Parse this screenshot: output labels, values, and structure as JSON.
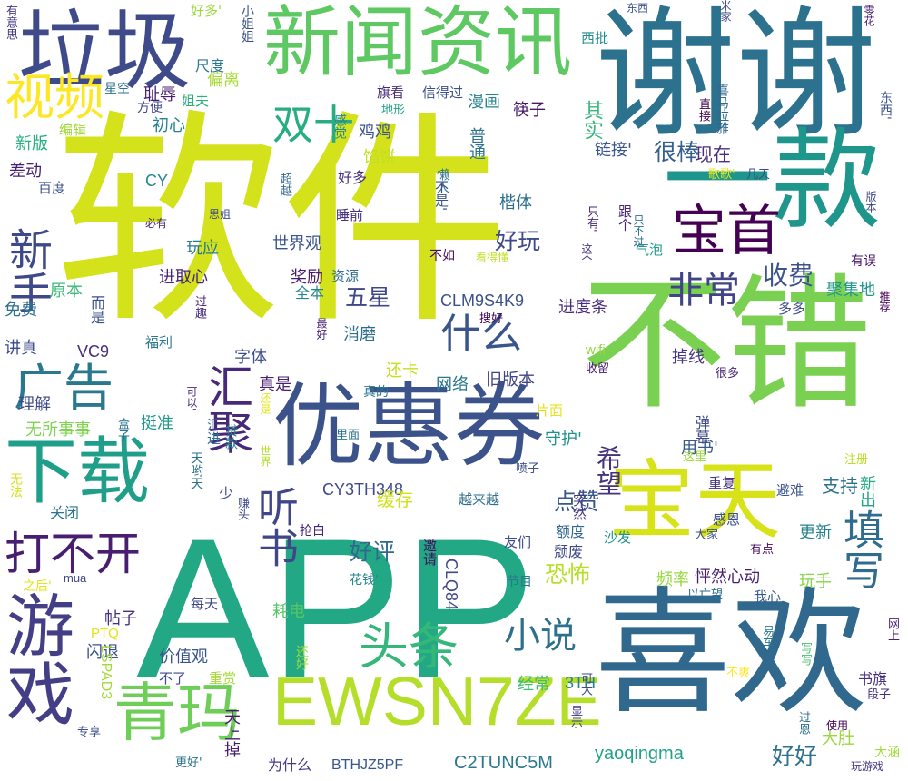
{
  "word_cloud": {
    "words": [
      {
        "text": "软件",
        "color": "#d3e21b"
      },
      {
        "text": "APP",
        "color": "#22a884"
      },
      {
        "text": "谢谢",
        "color": "#2c718e"
      },
      {
        "text": "不错",
        "color": "#7ad151"
      },
      {
        "text": "喜欢",
        "color": "#31688e"
      },
      {
        "text": "一款",
        "color": "#1f968b"
      },
      {
        "text": "新闻资讯",
        "color": "#5ec962"
      },
      {
        "text": "优惠券",
        "color": "#3b528b"
      },
      {
        "text": "垃圾",
        "color": "#3e4a89"
      },
      {
        "text": "EWSN7ZE",
        "color": "#b5de2b"
      },
      {
        "text": "宝天",
        "color": "#d8e219"
      },
      {
        "text": "下载",
        "color": "#1f9e89"
      },
      {
        "text": "游戏",
        "color": "#433e85"
      },
      {
        "text": "青玛",
        "color": "#6ece58"
      },
      {
        "text": "宝首",
        "color": "#440154"
      },
      {
        "text": "头条",
        "color": "#35b779"
      },
      {
        "text": "视频",
        "color": "#fde725"
      },
      {
        "text": "广告",
        "color": "#2a788e"
      },
      {
        "text": "双十",
        "color": "#27ad81"
      },
      {
        "text": "汇聚",
        "color": "#482878"
      },
      {
        "text": "打不开",
        "color": "#481f70"
      },
      {
        "text": "新手",
        "color": "#3e4989"
      },
      {
        "text": "听书",
        "color": "#404688"
      },
      {
        "text": "填写",
        "color": "#2f6c8e"
      },
      {
        "text": "非常",
        "color": "#414487"
      },
      {
        "text": "什么",
        "color": "#39568c"
      },
      {
        "text": "小说",
        "color": "#2d708e"
      },
      {
        "text": "收费",
        "color": "#3b528b"
      },
      {
        "text": "五星",
        "color": "#3f4788"
      },
      {
        "text": "好评",
        "color": "#31688e"
      },
      {
        "text": "恐怖",
        "color": "#b8de29"
      },
      {
        "text": "希望",
        "color": "#46337e"
      },
      {
        "text": "很棒",
        "color": "#355f8d"
      },
      {
        "text": "好玩",
        "color": "#3f4889"
      },
      {
        "text": "支持",
        "color": "#2c738e"
      },
      {
        "text": "点赞",
        "color": "#38588c"
      },
      {
        "text": "yaoqingma",
        "color": "#1fa287"
      },
      {
        "text": "好好",
        "color": "#2c718e"
      },
      {
        "text": "现在",
        "color": "#472f7d"
      },
      {
        "text": "进取心",
        "color": "#482576"
      },
      {
        "text": "世界观",
        "color": "#3a548c"
      },
      {
        "text": "CLM9S4K9",
        "color": "#3b518b"
      },
      {
        "text": "C2TUNC5M",
        "color": "#2a788e"
      },
      {
        "text": "BTHJZ5PF",
        "color": "#38588c"
      },
      {
        "text": "为什么",
        "color": "#453781"
      },
      {
        "text": "CY3TH348",
        "color": "#3e4a89"
      },
      {
        "text": "CLQ84",
        "color": "#3f4889"
      },
      {
        "text": "旧版本",
        "color": "#414487"
      },
      {
        "text": "进度条",
        "color": "#472d7b"
      },
      {
        "text": "掉线",
        "color": "#453882"
      },
      {
        "text": "鸡鸡",
        "color": "#3a538b"
      },
      {
        "text": "馅饼",
        "color": "#c2df23"
      },
      {
        "text": "漫画",
        "color": "#25848e"
      },
      {
        "text": "楷体",
        "color": "#2d708e"
      },
      {
        "text": "链接'",
        "color": "#39558c"
      },
      {
        "text": "筷子",
        "color": "#481769"
      },
      {
        "text": "普通",
        "color": "#2c728e"
      },
      {
        "text": "其实",
        "color": "#35b779"
      },
      {
        "text": "旗看",
        "color": "#472c7a"
      },
      {
        "text": "信得过",
        "color": "#3d4e8a"
      },
      {
        "text": "尺度",
        "color": "#2a778e"
      },
      {
        "text": "偏离",
        "color": "#a8db34"
      },
      {
        "text": "耻辱",
        "color": "#482071"
      },
      {
        "text": "初心",
        "color": "#26818e"
      },
      {
        "text": "姐夫",
        "color": "#2ab07f"
      },
      {
        "text": "星空",
        "color": "#2c728e"
      },
      {
        "text": "方便",
        "color": "#3f4788"
      },
      {
        "text": "编辑",
        "color": "#a0da39"
      },
      {
        "text": "新版",
        "color": "#29af7f"
      },
      {
        "text": "差动",
        "color": "#482071"
      },
      {
        "text": "百度",
        "color": "#3b528b"
      },
      {
        "text": "CY",
        "color": "#24878e"
      },
      {
        "text": "好多",
        "color": "#46307e"
      },
      {
        "text": "好多'",
        "color": "#9bd93c"
      },
      {
        "text": "玩应",
        "color": "#297a8e"
      },
      {
        "text": "睡前",
        "color": "#46327e"
      },
      {
        "text": "奖励",
        "color": "#481a6c"
      },
      {
        "text": "资源",
        "color": "#2f6b8e"
      },
      {
        "text": "全本",
        "color": "#25858e"
      },
      {
        "text": "原本",
        "color": "#3aba76"
      },
      {
        "text": "免费",
        "color": "#2d708e"
      },
      {
        "text": "讲真",
        "color": "#3e4a89"
      },
      {
        "text": "VC9",
        "color": "#472d7b"
      },
      {
        "text": "福利",
        "color": "#2a768e"
      },
      {
        "text": "消磨",
        "color": "#2e6f8e"
      },
      {
        "text": "字体",
        "color": "#3c4f8a"
      },
      {
        "text": "真是",
        "color": "#482071"
      },
      {
        "text": "还卡",
        "color": "#c5e021"
      },
      {
        "text": "网络",
        "color": "#2a788e"
      },
      {
        "text": "理解",
        "color": "#3e4989"
      },
      {
        "text": "无所事事",
        "color": "#7fd34e"
      },
      {
        "text": "挺准",
        "color": "#1f998a"
      },
      {
        "text": "片面",
        "color": "#e5e419"
      },
      {
        "text": "守护'",
        "color": "#20928c"
      },
      {
        "text": "用书'",
        "color": "#38598c"
      },
      {
        "text": "关闭",
        "color": "#2c738e"
      },
      {
        "text": "缓存",
        "color": "#d0e11c"
      },
      {
        "text": "越来越",
        "color": "#2e6e8e"
      },
      {
        "text": "突然",
        "color": "#453882"
      },
      {
        "text": "重复",
        "color": "#46327e"
      },
      {
        "text": "避难",
        "color": "#3a548c"
      },
      {
        "text": "更新",
        "color": "#26828e"
      },
      {
        "text": "感恩",
        "color": "#3d4e8a"
      },
      {
        "text": "友们",
        "color": "#3f4889"
      },
      {
        "text": "沙发",
        "color": "#21918c"
      },
      {
        "text": "频率",
        "color": "#95d840"
      },
      {
        "text": "怦然心动",
        "color": "#481f70"
      },
      {
        "text": "玩手",
        "color": "#86d549"
      },
      {
        "text": "帖子",
        "color": "#472e7c"
      },
      {
        "text": "耗电",
        "color": "#55c667"
      },
      {
        "text": "我心",
        "color": "#375b8d"
      },
      {
        "text": "每天",
        "color": "#3f4889"
      },
      {
        "text": "PTQ",
        "color": "#e2e418"
      },
      {
        "text": "闪退",
        "color": "#3c4f8a"
      },
      {
        "text": "价值观",
        "color": "#39568c"
      },
      {
        "text": "不了",
        "color": "#3e4989"
      },
      {
        "text": "重赏",
        "color": "#a5db36"
      },
      {
        "text": "还好",
        "color": "#9fda3a"
      },
      {
        "text": "经常",
        "color": "#3dbc74"
      },
      {
        "text": "3TH",
        "color": "#26828e"
      },
      {
        "text": "书旗",
        "color": "#46307e"
      },
      {
        "text": "大肚",
        "color": "#99d83d"
      },
      {
        "text": "天上掉",
        "color": "#481b6d"
      },
      {
        "text": "更好'",
        "color": "#2b748e"
      },
      {
        "text": "大涵",
        "color": "#a2da37"
      },
      {
        "text": "玩游戏",
        "color": "#46337f"
      },
      {
        "text": "使用",
        "color": "#440154"
      },
      {
        "text": "mua",
        "color": "#3e4989"
      },
      {
        "text": "花钱'",
        "color": "#24868e"
      },
      {
        "text": "节目",
        "color": "#2a788e"
      },
      {
        "text": "有误",
        "color": "#471063"
      },
      {
        "text": "多多",
        "color": "#3e4a89"
      },
      {
        "text": "聚集地",
        "color": "#1f958b"
      },
      {
        "text": "收留",
        "color": "#48186a"
      },
      {
        "text": "很多",
        "color": "#482576"
      },
      {
        "text": "注册",
        "color": "#bade28"
      },
      {
        "text": "盒子",
        "color": "#2c738e"
      },
      {
        "text": "有点",
        "color": "#460a5d"
      },
      {
        "text": "大家",
        "color": "#3b518b"
      },
      {
        "text": "以亡望",
        "color": "#2e6e8e"
      },
      {
        "text": "喷子",
        "color": "#3b518b"
      },
      {
        "text": "里面",
        "color": "#2c738e"
      },
      {
        "text": "东西",
        "color": "#3b528b"
      },
      {
        "text": "西批",
        "color": "#218f8d"
      },
      {
        "text": "看得懂",
        "color": "#c2df23"
      },
      {
        "text": "不如",
        "color": "#450559"
      },
      {
        "text": "wifi",
        "color": "#93d741"
      },
      {
        "text": "只有'",
        "color": "#482475"
      },
      {
        "text": "跟个",
        "color": "#482878"
      },
      {
        "text": "气泡",
        "color": "#1f998a"
      },
      {
        "text": "这个",
        "color": "#453882"
      },
      {
        "text": "歌歌'",
        "color": "#e5e419"
      },
      {
        "text": "几天",
        "color": "#3e4a89"
      },
      {
        "text": "版本",
        "color": "#3f4889"
      },
      {
        "text": "只不过",
        "color": "#2e6f8e"
      },
      {
        "text": "喜马拉雅",
        "color": "#31688e"
      },
      {
        "text": "直接",
        "color": "#440256"
      },
      {
        "text": "零花",
        "color": "#481d6f"
      },
      {
        "text": "米家",
        "color": "#3e4a89"
      },
      {
        "text": "东西'",
        "color": "#3b528b"
      },
      {
        "text": "有意思",
        "color": "#453781"
      },
      {
        "text": "小姐姐",
        "color": "#3b528b"
      },
      {
        "text": "搜好",
        "color": "#440154"
      },
      {
        "text": "最好",
        "color": "#482475"
      },
      {
        "text": "过趣",
        "color": "#472a7a"
      },
      {
        "text": "必有",
        "color": "#482475"
      },
      {
        "text": "思姐",
        "color": "#3e4989"
      },
      {
        "text": "超越",
        "color": "#31688e"
      },
      {
        "text": "感觉",
        "color": "#24878e"
      },
      {
        "text": "地形",
        "color": "#20a386"
      },
      {
        "text": "懒人",
        "color": "#2c728e"
      },
      {
        "text": "不是'",
        "color": "#3b528b"
      },
      {
        "text": "无法",
        "color": "#d2e21b"
      },
      {
        "text": "之后'",
        "color": "#e2e418"
      },
      {
        "text": "专享",
        "color": "#3b528b"
      },
      {
        "text": "LSPAD3",
        "color": "#a2da37"
      },
      {
        "text": "过恩",
        "color": "#2e6f8e"
      },
      {
        "text": "显示",
        "color": "#443983"
      },
      {
        "text": "可大",
        "color": "#3e4a89"
      },
      {
        "text": "段子",
        "color": "#46327e"
      },
      {
        "text": "写写",
        "color": "#4ac16d"
      },
      {
        "text": "不爽",
        "color": "#fde725"
      },
      {
        "text": "易车",
        "color": "#2a788e"
      },
      {
        "text": "网上",
        "color": "#481f70"
      },
      {
        "text": "新出",
        "color": "#22a884"
      },
      {
        "text": "推荐",
        "color": "#440154"
      },
      {
        "text": "弹幕",
        "color": "#3e4989"
      },
      {
        "text": "这里",
        "color": "#9bd93c"
      },
      {
        "text": "世界",
        "color": "#b5de2b"
      },
      {
        "text": "还是",
        "color": "#e2e418"
      },
      {
        "text": "可以'",
        "color": "#472d7b"
      },
      {
        "text": "汇进",
        "color": "#2c728e"
      },
      {
        "text": "贷款",
        "color": "#24868e"
      },
      {
        "text": "赚头",
        "color": "#3f4889"
      },
      {
        "text": "抢白",
        "color": "#482576"
      },
      {
        "text": "邀请",
        "color": "#460b5e"
      },
      {
        "text": "额度",
        "color": "#31688e"
      },
      {
        "text": "颓废",
        "color": "#3f4788"
      },
      {
        "text": "而是",
        "color": "#3b518b"
      },
      {
        "text": "真的",
        "color": "#2a788e"
      },
      {
        "text": "天哟天",
        "color": "#2c728e"
      },
      {
        "text": "少",
        "color": "#3e4989"
      }
    ]
  }
}
